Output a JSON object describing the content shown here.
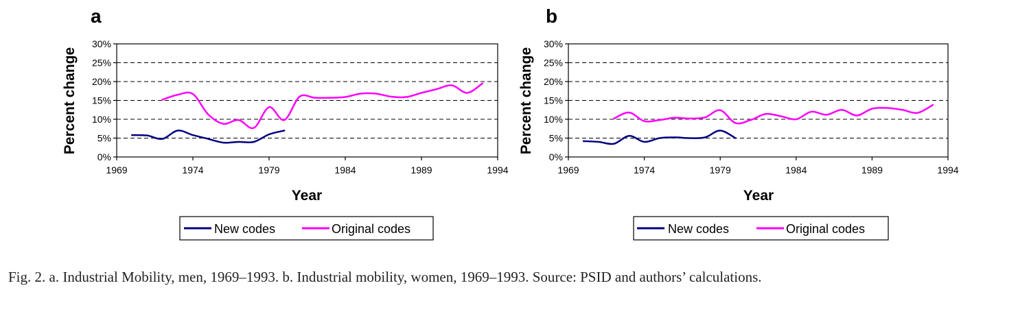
{
  "chart_data": [
    {
      "type": "line",
      "panel_label": "a",
      "xlabel": "Year",
      "ylabel": "Percent change",
      "xlim": [
        1969,
        1994
      ],
      "ylim": [
        0,
        30
      ],
      "x_ticks": [
        1969,
        1974,
        1979,
        1984,
        1989,
        1994
      ],
      "y_ticks": [
        0,
        5,
        10,
        15,
        20,
        25,
        30
      ],
      "y_tick_labels": [
        "0%",
        "5%",
        "10%",
        "15%",
        "20%",
        "25%",
        "30%"
      ],
      "grid": "horizontal dashed",
      "legend_position": "bottom",
      "series": [
        {
          "name": "New codes",
          "color": "#000080",
          "x": [
            1970,
            1971,
            1972,
            1973,
            1974,
            1975,
            1976,
            1977,
            1978,
            1979,
            1980
          ],
          "y": [
            5.8,
            5.7,
            4.8,
            7.0,
            5.8,
            4.8,
            3.8,
            4.0,
            4.0,
            6.0,
            7.0
          ]
        },
        {
          "name": "Original codes",
          "color": "#FF00FF",
          "x": [
            1972,
            1973,
            1974,
            1975,
            1976,
            1977,
            1978,
            1979,
            1980,
            1981,
            1982,
            1983,
            1984,
            1985,
            1986,
            1987,
            1988,
            1989,
            1990,
            1991,
            1992,
            1993
          ],
          "y": [
            15.2,
            16.5,
            16.7,
            11.3,
            8.8,
            9.8,
            7.7,
            13.2,
            9.8,
            16.0,
            15.7,
            15.7,
            15.9,
            16.8,
            16.8,
            16.0,
            15.9,
            17.0,
            18.0,
            19.0,
            17.0,
            19.5
          ]
        }
      ]
    },
    {
      "type": "line",
      "panel_label": "b",
      "xlabel": "Year",
      "ylabel": "Percent change",
      "xlim": [
        1969,
        1994
      ],
      "ylim": [
        0,
        30
      ],
      "x_ticks": [
        1969,
        1974,
        1979,
        1984,
        1989,
        1994
      ],
      "y_ticks": [
        0,
        5,
        10,
        15,
        20,
        25,
        30
      ],
      "y_tick_labels": [
        "0%",
        "5%",
        "10%",
        "15%",
        "20%",
        "25%",
        "30%"
      ],
      "grid": "horizontal dashed",
      "legend_position": "bottom",
      "series": [
        {
          "name": "New codes",
          "color": "#000080",
          "x": [
            1970,
            1971,
            1972,
            1973,
            1974,
            1975,
            1976,
            1977,
            1978,
            1979,
            1980
          ],
          "y": [
            4.2,
            4.0,
            3.5,
            5.6,
            4.0,
            5.0,
            5.2,
            5.0,
            5.2,
            7.0,
            5.0
          ]
        },
        {
          "name": "Original codes",
          "color": "#FF00FF",
          "x": [
            1972,
            1973,
            1974,
            1975,
            1976,
            1977,
            1978,
            1979,
            1980,
            1981,
            1982,
            1983,
            1984,
            1985,
            1986,
            1987,
            1988,
            1989,
            1990,
            1991,
            1992,
            1993
          ],
          "y": [
            10.2,
            11.8,
            9.5,
            9.8,
            10.4,
            10.2,
            10.5,
            12.4,
            9.0,
            9.8,
            11.4,
            10.8,
            10.0,
            12.0,
            11.2,
            12.5,
            11.0,
            12.8,
            13.0,
            12.5,
            11.7,
            13.8
          ]
        }
      ]
    }
  ],
  "caption": "Fig. 2. a. Industrial Mobility, men, 1969–1993. b. Industrial mobility, women, 1969–1993. Source: PSID and authors’ calculations."
}
